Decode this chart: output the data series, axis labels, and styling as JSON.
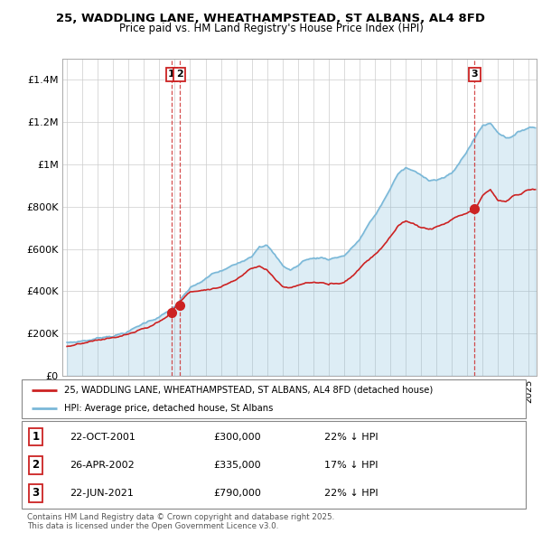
{
  "title": "25, WADDLING LANE, WHEATHAMPSTEAD, ST ALBANS, AL4 8FD",
  "subtitle": "Price paid vs. HM Land Registry's House Price Index (HPI)",
  "hpi_color": "#7ab8d8",
  "house_color": "#cc2222",
  "sale_marker_color": "#cc2222",
  "background_color": "#ffffff",
  "grid_color": "#cccccc",
  "ylim": [
    0,
    1500000
  ],
  "yticks": [
    0,
    200000,
    400000,
    600000,
    800000,
    1000000,
    1200000,
    1400000
  ],
  "ytick_labels": [
    "£0",
    "£200K",
    "£400K",
    "£600K",
    "£800K",
    "£1M",
    "£1.2M",
    "£1.4M"
  ],
  "xmin": 1994.7,
  "xmax": 2025.5,
  "sales": [
    {
      "label": "1",
      "date": "22-OCT-2001",
      "year": 2001.8,
      "price": 300000,
      "hpi_pct": "22% ↓ HPI"
    },
    {
      "label": "2",
      "date": "26-APR-2002",
      "year": 2002.3,
      "price": 335000,
      "hpi_pct": "17% ↓ HPI"
    },
    {
      "label": "3",
      "date": "22-JUN-2021",
      "year": 2021.47,
      "price": 790000,
      "hpi_pct": "22% ↓ HPI"
    }
  ],
  "legend_line1": "25, WADDLING LANE, WHEATHAMPSTEAD, ST ALBANS, AL4 8FD (detached house)",
  "legend_line2": "HPI: Average price, detached house, St Albans",
  "footer": "Contains HM Land Registry data © Crown copyright and database right 2025.\nThis data is licensed under the Open Government Licence v3.0."
}
